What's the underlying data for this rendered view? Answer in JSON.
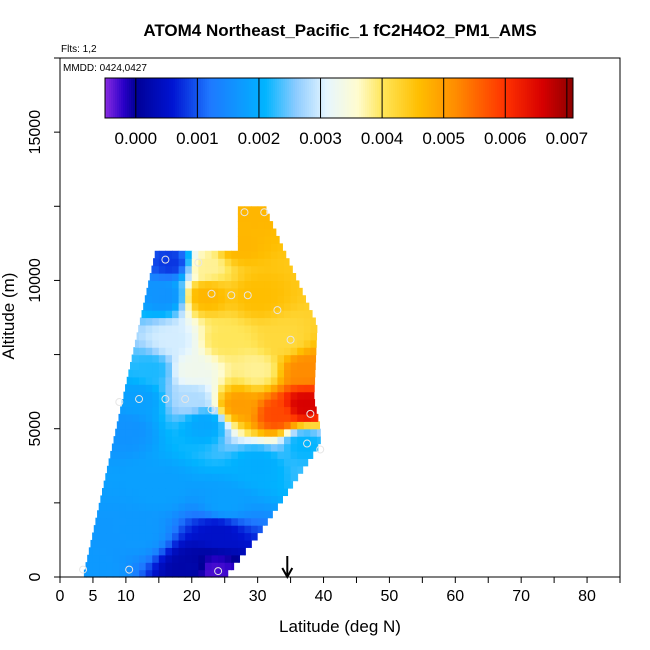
{
  "chart_data": {
    "type": "heatmap",
    "title": "ATOM4 Northeast_Pacific_1 fC2H4O2_PM1_AMS",
    "flights_label": "Flts: 1,2",
    "mmdd_label": "MMDD: 0424,0427",
    "xlabel": "Latitude (deg N)",
    "ylabel": "Altitude (m)",
    "xlim": [
      0,
      85
    ],
    "ylim": [
      0,
      17500
    ],
    "x_ticks": [
      0,
      5,
      10,
      20,
      30,
      40,
      50,
      60,
      70,
      80
    ],
    "x_tick_labels": [
      "0",
      "5",
      "10",
      "20",
      "30",
      "40",
      "50",
      "60",
      "70",
      "80"
    ],
    "y_ticks": [
      0,
      5000,
      10000,
      15000
    ],
    "y_tick_labels": [
      "0",
      "5000",
      "10000",
      "15000"
    ],
    "colorbar": {
      "range": [
        -0.0005,
        0.0071
      ],
      "ticks": [
        0.0,
        0.001,
        0.002,
        0.003,
        0.004,
        0.005,
        0.006,
        0.007
      ],
      "tick_labels": [
        "0.000",
        "0.001",
        "0.002",
        "0.003",
        "0.004",
        "0.005",
        "0.006",
        "0.007"
      ],
      "stops": [
        {
          "v": -0.0005,
          "color": "#8a2be2"
        },
        {
          "v": -0.0002,
          "color": "#2a00c8"
        },
        {
          "v": 0.0,
          "color": "#000096"
        },
        {
          "v": 0.0006,
          "color": "#0014d2"
        },
        {
          "v": 0.0012,
          "color": "#1e78ff"
        },
        {
          "v": 0.0021,
          "color": "#00b4ff"
        },
        {
          "v": 0.0026,
          "color": "#8ccbff"
        },
        {
          "v": 0.0031,
          "color": "#e6f6ff"
        },
        {
          "v": 0.0036,
          "color": "#fffcd0"
        },
        {
          "v": 0.004,
          "color": "#ffe65a"
        },
        {
          "v": 0.0046,
          "color": "#ffbe00"
        },
        {
          "v": 0.0052,
          "color": "#ff8c00"
        },
        {
          "v": 0.006,
          "color": "#ff3200"
        },
        {
          "v": 0.0066,
          "color": "#d70000"
        },
        {
          "v": 0.0071,
          "color": "#8c0000"
        }
      ]
    },
    "profile_band_deg": {
      "base_left": 3.5,
      "top_left": 14.5,
      "top_altitude": 11000,
      "right_edge": [
        [
          0,
          25
        ],
        [
          1400,
          30
        ],
        [
          4500,
          39.5
        ],
        [
          5000,
          39.5
        ],
        [
          6000,
          38.5
        ],
        [
          8500,
          39
        ],
        [
          11000,
          34
        ],
        [
          12500,
          31
        ]
      ]
    },
    "anchors": [
      {
        "lat": 5,
        "alt": 300,
        "value": 0.0017
      },
      {
        "lat": 12,
        "alt": 1500,
        "value": 0.0017
      },
      {
        "lat": 20,
        "alt": 300,
        "value": 0.0002
      },
      {
        "lat": 23,
        "alt": 200,
        "value": -0.0003
      },
      {
        "lat": 24,
        "alt": 1500,
        "value": 0.0005
      },
      {
        "lat": 25,
        "alt": 2500,
        "value": 0.0018
      },
      {
        "lat": 15,
        "alt": 3000,
        "value": 0.0018
      },
      {
        "lat": 30,
        "alt": 3800,
        "value": 0.002
      },
      {
        "lat": 37,
        "alt": 4500,
        "value": 0.0021
      },
      {
        "lat": 10,
        "alt": 5000,
        "value": 0.0016
      },
      {
        "lat": 22,
        "alt": 5200,
        "value": 0.0019
      },
      {
        "lat": 33,
        "alt": 5500,
        "value": 0.0058
      },
      {
        "lat": 37,
        "alt": 5800,
        "value": 0.0066
      },
      {
        "lat": 27,
        "alt": 5800,
        "value": 0.005
      },
      {
        "lat": 20,
        "alt": 6000,
        "value": 0.0028
      },
      {
        "lat": 12,
        "alt": 6000,
        "value": 0.0018
      },
      {
        "lat": 14,
        "alt": 7000,
        "value": 0.0022
      },
      {
        "lat": 20,
        "alt": 7000,
        "value": 0.0033
      },
      {
        "lat": 30,
        "alt": 7000,
        "value": 0.0038
      },
      {
        "lat": 37,
        "alt": 7000,
        "value": 0.0052
      },
      {
        "lat": 17,
        "alt": 8000,
        "value": 0.003
      },
      {
        "lat": 25,
        "alt": 8000,
        "value": 0.004
      },
      {
        "lat": 34,
        "alt": 8000,
        "value": 0.0042
      },
      {
        "lat": 16,
        "alt": 9500,
        "value": 0.0016
      },
      {
        "lat": 22,
        "alt": 9500,
        "value": 0.0047
      },
      {
        "lat": 30,
        "alt": 9500,
        "value": 0.0046
      },
      {
        "lat": 17,
        "alt": 10600,
        "value": 0.0008
      },
      {
        "lat": 22,
        "alt": 10500,
        "value": 0.0038
      },
      {
        "lat": 27,
        "alt": 11200,
        "value": 0.0047
      },
      {
        "lat": 29,
        "alt": 12300,
        "value": 0.0047
      }
    ],
    "sample_points": [
      {
        "lat": 3.5,
        "alt": 250
      },
      {
        "lat": 10.5,
        "alt": 250
      },
      {
        "lat": 24.0,
        "alt": 200
      },
      {
        "lat": 9.0,
        "alt": 5900
      },
      {
        "lat": 12.0,
        "alt": 6000
      },
      {
        "lat": 16.0,
        "alt": 6000
      },
      {
        "lat": 19.0,
        "alt": 6000
      },
      {
        "lat": 23.0,
        "alt": 5650
      },
      {
        "lat": 16.0,
        "alt": 10700
      },
      {
        "lat": 21.0,
        "alt": 10600
      },
      {
        "lat": 23.0,
        "alt": 9550
      },
      {
        "lat": 26.0,
        "alt": 9500
      },
      {
        "lat": 28.5,
        "alt": 9500
      },
      {
        "lat": 33.0,
        "alt": 9000
      },
      {
        "lat": 35.0,
        "alt": 8000
      },
      {
        "lat": 38.0,
        "alt": 5500
      },
      {
        "lat": 37.5,
        "alt": 4500
      },
      {
        "lat": 39.5,
        "alt": 4300
      },
      {
        "lat": 28.0,
        "alt": 12300
      },
      {
        "lat": 31.0,
        "alt": 12300
      }
    ],
    "arrow_marker": {
      "lat": 34.5
    }
  }
}
